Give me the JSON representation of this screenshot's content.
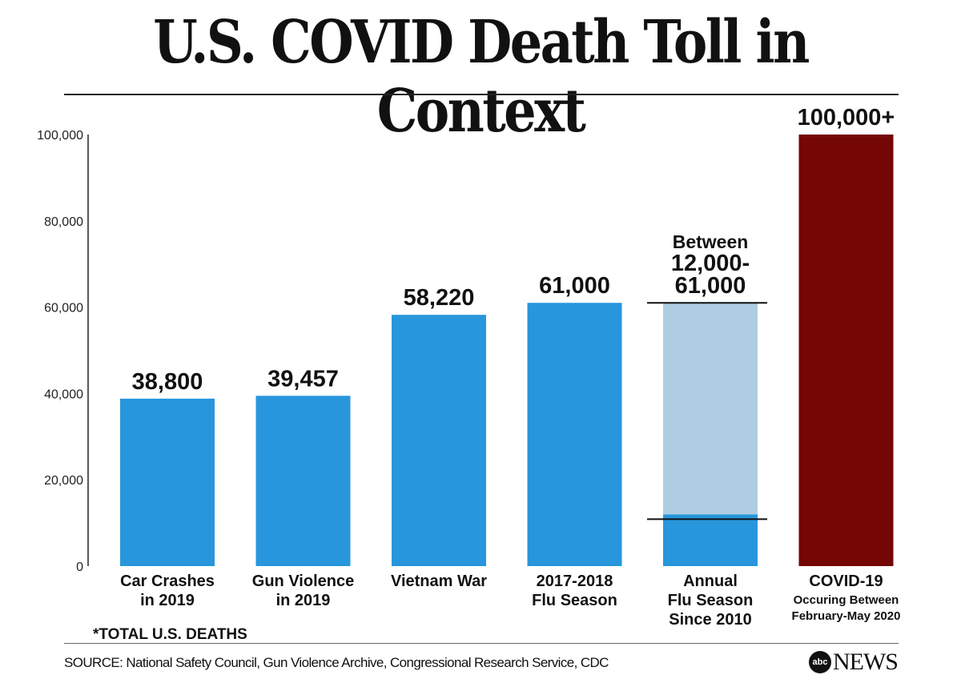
{
  "chart_data": {
    "type": "bar",
    "title": "U.S. COVID Death Toll in Context",
    "xlabel": "",
    "ylabel": "*TOTAL U.S. DEATHS",
    "ylim": [
      0,
      100000
    ],
    "yticks": [
      0,
      20000,
      40000,
      60000,
      80000,
      100000
    ],
    "ytick_labels": [
      "0",
      "20,000",
      "40,000",
      "60,000",
      "80,000",
      "100,000"
    ],
    "grid": false,
    "categories": [
      {
        "lines": [
          "Car Crashes",
          "in 2019"
        ],
        "value": 38800,
        "label_lines": [
          "38,800"
        ],
        "color": "#2896dc"
      },
      {
        "lines": [
          "Gun Violence",
          "in 2019"
        ],
        "value": 39457,
        "label_lines": [
          "39,457"
        ],
        "color": "#2896dc"
      },
      {
        "lines": [
          "Vietnam War"
        ],
        "value": 58220,
        "label_lines": [
          "58,220"
        ],
        "color": "#2896dc"
      },
      {
        "lines": [
          "2017-2018",
          "Flu Season"
        ],
        "value": 61000,
        "label_lines": [
          "61,000"
        ],
        "color": "#2896dc"
      },
      {
        "lines": [
          "Annual",
          "Flu Season",
          "Since 2010"
        ],
        "value": 61000,
        "range": [
          12000,
          61000
        ],
        "label_lines": [
          "Between",
          "12,000-",
          "61,000"
        ],
        "color": "#2896dc",
        "range_color": "#aecde2"
      },
      {
        "lines": [
          "COVID-19"
        ],
        "sub_lines": [
          "Occuring Between",
          "February-May 2020"
        ],
        "value": 100000,
        "label_lines": [
          "100,000+"
        ],
        "color": "#740606"
      }
    ]
  },
  "footnote": "*TOTAL U.S. DEATHS",
  "source": "SOURCE: National Safety Council, Gun Violence Archive,  Congressional Research Service,  CDC",
  "logo": {
    "mark": "abc",
    "text": "NEWS"
  }
}
